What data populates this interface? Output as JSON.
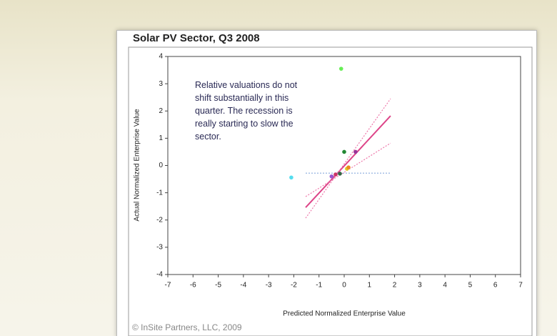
{
  "chart_data": {
    "type": "scatter",
    "title": "Solar PV Sector, Q3 2008",
    "x_label": "Predicted Normalized Enterprise Value",
    "y_label": "Actual Normalized Enterprise Value",
    "footer": "© InSite Partners, LLC, 2009",
    "annotation": [
      "Relative valuations do not",
      "shift substantially in this",
      "quarter. The recession is",
      "really starting to slow the",
      "sector."
    ],
    "xlim": [
      -7,
      7
    ],
    "ylim": [
      -4,
      4
    ],
    "xticks": [
      -7,
      -6,
      -5,
      -4,
      -3,
      -2,
      -1,
      0,
      1,
      2,
      3,
      4,
      5,
      6,
      7
    ],
    "yticks": [
      -4,
      -3,
      -2,
      -1,
      0,
      1,
      2,
      3,
      4
    ],
    "points": {
      "x": [
        -0.12,
        -2.1,
        0.0,
        0.45,
        -0.5,
        -0.34,
        -0.17,
        0.11,
        0.17
      ],
      "y": [
        3.55,
        -0.44,
        0.5,
        0.5,
        -0.4,
        -0.33,
        -0.3,
        -0.12,
        -0.07
      ],
      "colors": [
        "#66ee55",
        "#55ddee",
        "#228833",
        "#993399",
        "#9955cc",
        "#cc3366",
        "#336644",
        "#ddcc22",
        "#ee8822"
      ]
    },
    "lines": [
      {
        "x": [
          -1.53,
          1.84
        ],
        "y": [
          -1.54,
          1.82
        ],
        "color": "#dd4488",
        "dashed": false
      },
      {
        "x": [
          -1.53,
          1.84
        ],
        "y": [
          -1.93,
          2.45
        ],
        "color": "#ee77aa",
        "dashed": true
      },
      {
        "x": [
          -1.53,
          1.84
        ],
        "y": [
          -1.14,
          0.82
        ],
        "color": "#ee77aa",
        "dashed": true
      },
      {
        "x": [
          -1.53,
          1.84
        ],
        "y": [
          -0.28,
          -0.28
        ],
        "color": "#88aadd",
        "dashed": true
      }
    ]
  }
}
